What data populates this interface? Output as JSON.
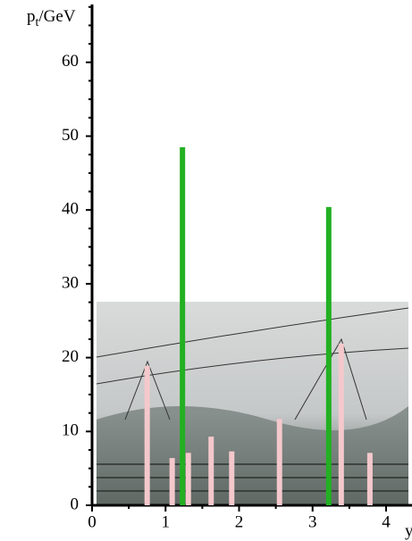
{
  "chart_data": {
    "type": "bar",
    "ylabel": {
      "main": "p",
      "sub": "t",
      "rest": "/GeV"
    },
    "xlabel": "y",
    "series": [
      {
        "color": "#22b022",
        "x": [
          1.23,
          3.22
        ],
        "values": [
          48.5,
          40.4
        ]
      },
      {
        "color": "#f4c8cc",
        "x": [
          0.75,
          1.09,
          1.31,
          1.62,
          1.9,
          2.55,
          3.39,
          3.78
        ],
        "values": [
          18.9,
          6.4,
          7.1,
          9.3,
          7.3,
          11.7,
          21.9,
          7.1
        ]
      }
    ],
    "xlim": [
      0,
      4.35
    ],
    "ylim": [
      0,
      68
    ],
    "xticks": [
      0,
      1,
      2,
      3,
      4
    ],
    "yticks": [
      0,
      10,
      20,
      30,
      40,
      50,
      60
    ],
    "yminorticks": [
      2.5,
      5,
      7.5,
      12.5,
      15,
      17.5,
      22.5,
      25,
      27.5,
      32.5,
      35,
      37.5,
      42.5,
      45,
      47.5,
      52.5,
      55,
      57.5,
      62.5,
      65,
      67.5
    ],
    "xminorticks": [
      0.5,
      1.5,
      2.5,
      3.5
    ]
  }
}
